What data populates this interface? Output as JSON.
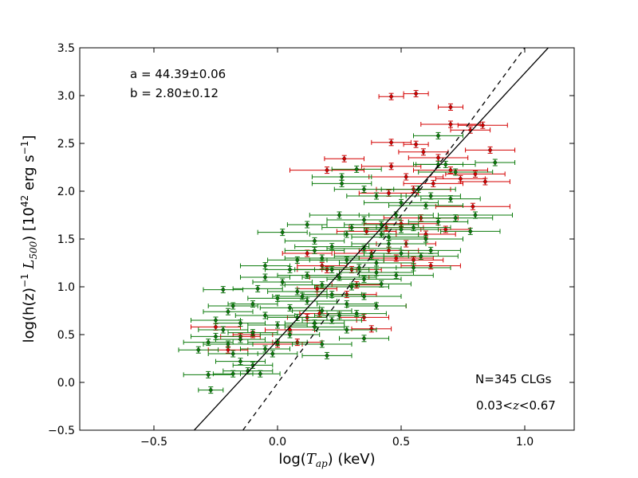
{
  "chart_data": {
    "type": "scatter",
    "title": "",
    "xlabel": "log(T_ap) (keV)",
    "ylabel": "log(h(z)^-1 L_500) [10^42 erg s^-1]",
    "xlim": [
      -0.8,
      1.2
    ],
    "ylim": [
      -0.5,
      3.5
    ],
    "xticks": [
      -0.5,
      0.0,
      0.5,
      1.0
    ],
    "xtick_labels": [
      "−0.5",
      "0.0",
      "0.5",
      "1.0"
    ],
    "yticks": [
      -0.5,
      0.0,
      0.5,
      1.0,
      1.5,
      2.0,
      2.5,
      3.0,
      3.5
    ],
    "ytick_labels": [
      "−0.5",
      "0.0",
      "0.5",
      "1.0",
      "1.5",
      "2.0",
      "2.5",
      "3.0",
      "3.5"
    ],
    "grid": false,
    "annotations": {
      "fit_a": "a = 44.39±0.06",
      "fit_b": "b = 2.80±0.12",
      "n_label": "N=345 CLGs",
      "z_label": "0.03<z<0.67"
    },
    "colors": {
      "red": "#d40000",
      "green": "#0a7a0a",
      "line": "#000000"
    },
    "lines": [
      {
        "style": "solid",
        "x": [
          -0.337,
          1.095
        ],
        "y": [
          -0.5,
          3.5
        ]
      },
      {
        "style": "dashed",
        "x": [
          -0.14,
          1.0
        ],
        "y": [
          -0.5,
          3.5
        ]
      }
    ],
    "series": [
      {
        "color": "red",
        "points": [
          [
            0.46,
            2.99,
            0.05
          ],
          [
            0.56,
            3.02,
            0.05
          ],
          [
            0.7,
            2.88,
            0.05
          ],
          [
            0.78,
            2.64,
            0.08
          ],
          [
            0.83,
            2.69,
            0.1
          ],
          [
            0.7,
            2.7,
            0.12
          ],
          [
            0.86,
            2.43,
            0.1
          ],
          [
            0.46,
            2.51,
            0.08
          ],
          [
            0.56,
            2.49,
            0.05
          ],
          [
            0.27,
            2.34,
            0.08
          ],
          [
            0.2,
            2.22,
            0.15
          ],
          [
            0.46,
            2.26,
            0.12
          ],
          [
            0.59,
            2.41,
            0.1
          ],
          [
            0.65,
            2.35,
            0.12
          ],
          [
            0.7,
            2.22,
            0.15
          ],
          [
            0.8,
            2.18,
            0.12
          ],
          [
            0.74,
            2.13,
            0.1
          ],
          [
            0.84,
            2.1,
            0.1
          ],
          [
            0.52,
            2.15,
            0.15
          ],
          [
            0.63,
            2.08,
            0.12
          ],
          [
            0.55,
            2.02,
            0.15
          ],
          [
            0.45,
            1.98,
            0.12
          ],
          [
            0.79,
            1.84,
            0.15
          ],
          [
            0.58,
            1.72,
            0.15
          ],
          [
            0.5,
            1.66,
            0.15
          ],
          [
            0.44,
            1.62,
            0.15
          ],
          [
            0.52,
            1.45,
            0.12
          ],
          [
            0.45,
            1.38,
            0.12
          ],
          [
            0.38,
            1.35,
            0.15
          ],
          [
            0.48,
            1.3,
            0.15
          ],
          [
            0.55,
            1.28,
            0.12
          ],
          [
            0.12,
            1.35,
            0.1
          ],
          [
            0.18,
            1.22,
            0.1
          ],
          [
            0.2,
            1.18,
            0.12
          ],
          [
            0.25,
            1.1,
            0.12
          ],
          [
            0.32,
            1.02,
            0.1
          ],
          [
            0.16,
            0.98,
            0.08
          ],
          [
            0.28,
            0.92,
            0.12
          ],
          [
            0.4,
            0.8,
            0.12
          ],
          [
            0.35,
            0.68,
            0.1
          ],
          [
            0.17,
            0.72,
            0.08
          ],
          [
            0.12,
            0.68,
            0.08
          ],
          [
            0.05,
            0.55,
            0.1
          ],
          [
            0.0,
            0.4,
            0.1
          ],
          [
            -0.1,
            0.5,
            0.08
          ],
          [
            -0.15,
            0.48,
            0.08
          ],
          [
            -0.2,
            0.34,
            0.08
          ],
          [
            -0.25,
            0.58,
            0.1
          ],
          [
            0.38,
            0.56,
            0.08
          ],
          [
            0.22,
            0.65,
            0.1
          ],
          [
            0.08,
            0.42,
            0.1
          ],
          [
            0.6,
            1.55,
            0.12
          ],
          [
            0.62,
            1.22,
            0.12
          ],
          [
            0.68,
            1.6,
            0.1
          ],
          [
            0.3,
            1.18,
            0.12
          ],
          [
            0.36,
            1.58,
            0.12
          ]
        ]
      },
      {
        "color": "green",
        "points": [
          [
            0.88,
            2.3,
            0.08
          ],
          [
            0.68,
            2.28,
            0.12
          ],
          [
            0.72,
            2.2,
            0.15
          ],
          [
            0.65,
            2.58,
            0.1
          ],
          [
            0.26,
            2.15,
            0.12
          ],
          [
            0.26,
            2.08,
            0.12
          ],
          [
            0.32,
            2.23,
            0.1
          ],
          [
            0.35,
            2.02,
            0.12
          ],
          [
            0.4,
            1.95,
            0.12
          ],
          [
            0.57,
            2.02,
            0.15
          ],
          [
            0.5,
            1.88,
            0.15
          ],
          [
            0.6,
            1.85,
            0.15
          ],
          [
            0.72,
            1.72,
            0.15
          ],
          [
            0.8,
            1.75,
            0.15
          ],
          [
            0.25,
            1.75,
            0.12
          ],
          [
            0.35,
            1.7,
            0.15
          ],
          [
            0.42,
            1.65,
            0.15
          ],
          [
            0.55,
            1.62,
            0.15
          ],
          [
            0.65,
            1.68,
            0.12
          ],
          [
            0.12,
            1.65,
            0.08
          ],
          [
            0.02,
            1.57,
            0.1
          ],
          [
            0.28,
            1.55,
            0.15
          ],
          [
            0.45,
            1.52,
            0.15
          ],
          [
            0.6,
            1.5,
            0.15
          ],
          [
            0.15,
            1.48,
            0.12
          ],
          [
            0.22,
            1.42,
            0.15
          ],
          [
            0.35,
            1.4,
            0.15
          ],
          [
            0.5,
            1.35,
            0.15
          ],
          [
            0.62,
            1.38,
            0.12
          ],
          [
            0.18,
            1.3,
            0.15
          ],
          [
            0.28,
            1.28,
            0.15
          ],
          [
            0.4,
            1.25,
            0.15
          ],
          [
            0.55,
            1.2,
            0.15
          ],
          [
            -0.05,
            1.22,
            0.1
          ],
          [
            0.05,
            1.18,
            0.1
          ],
          [
            0.12,
            1.12,
            0.12
          ],
          [
            0.25,
            1.1,
            0.15
          ],
          [
            0.35,
            1.08,
            0.15
          ],
          [
            0.48,
            1.12,
            0.15
          ],
          [
            -0.05,
            1.1,
            0.1
          ],
          [
            0.02,
            1.05,
            0.12
          ],
          [
            0.18,
            1.02,
            0.15
          ],
          [
            0.3,
            1.0,
            0.15
          ],
          [
            0.42,
            1.03,
            0.12
          ],
          [
            -0.22,
            0.97,
            0.08
          ],
          [
            -0.08,
            0.98,
            0.1
          ],
          [
            0.08,
            0.95,
            0.12
          ],
          [
            0.22,
            0.92,
            0.12
          ],
          [
            0.35,
            0.9,
            0.15
          ],
          [
            0.0,
            0.88,
            0.12
          ],
          [
            0.12,
            0.85,
            0.12
          ],
          [
            0.28,
            0.82,
            0.12
          ],
          [
            0.4,
            0.8,
            0.12
          ],
          [
            -0.18,
            0.8,
            0.1
          ],
          [
            -0.1,
            0.82,
            0.1
          ],
          [
            0.05,
            0.78,
            0.12
          ],
          [
            0.18,
            0.75,
            0.12
          ],
          [
            0.32,
            0.72,
            0.12
          ],
          [
            -0.2,
            0.74,
            0.1
          ],
          [
            -0.05,
            0.7,
            0.12
          ],
          [
            0.08,
            0.68,
            0.12
          ],
          [
            0.22,
            0.65,
            0.12
          ],
          [
            -0.25,
            0.65,
            0.1
          ],
          [
            -0.15,
            0.62,
            0.1
          ],
          [
            0.0,
            0.6,
            0.12
          ],
          [
            0.15,
            0.58,
            0.12
          ],
          [
            0.28,
            0.55,
            0.12
          ],
          [
            -0.22,
            0.55,
            0.1
          ],
          [
            -0.1,
            0.52,
            0.1
          ],
          [
            0.05,
            0.5,
            0.12
          ],
          [
            -0.25,
            0.48,
            0.1
          ],
          [
            -0.15,
            0.45,
            0.1
          ],
          [
            0.0,
            0.42,
            0.12
          ],
          [
            0.18,
            0.4,
            0.12
          ],
          [
            0.35,
            0.46,
            0.1
          ],
          [
            -0.28,
            0.42,
            0.1
          ],
          [
            -0.2,
            0.4,
            0.1
          ],
          [
            -0.05,
            0.35,
            0.1
          ],
          [
            -0.32,
            0.34,
            0.08
          ],
          [
            -0.18,
            0.3,
            0.1
          ],
          [
            -0.02,
            0.3,
            0.1
          ],
          [
            0.2,
            0.28,
            0.1
          ],
          [
            -0.15,
            0.22,
            0.1
          ],
          [
            -0.1,
            0.18,
            0.08
          ],
          [
            -0.12,
            0.12,
            0.1
          ],
          [
            -0.18,
            0.09,
            0.08
          ],
          [
            -0.28,
            0.08,
            0.1
          ],
          [
            -0.07,
            0.09,
            0.08
          ],
          [
            -0.27,
            -0.08,
            0.05
          ],
          [
            0.5,
            1.6,
            0.15
          ],
          [
            0.45,
            1.45,
            0.15
          ],
          [
            0.58,
            1.32,
            0.15
          ],
          [
            0.38,
            1.32,
            0.15
          ],
          [
            0.3,
            1.62,
            0.12
          ],
          [
            0.15,
            1.38,
            0.12
          ],
          [
            0.22,
            1.18,
            0.15
          ],
          [
            0.1,
            0.9,
            0.12
          ],
          [
            0.25,
            0.7,
            0.1
          ],
          [
            0.42,
            1.55,
            0.15
          ],
          [
            0.7,
            1.92,
            0.12
          ],
          [
            0.62,
            1.95,
            0.12
          ],
          [
            0.48,
            1.75,
            0.15
          ],
          [
            0.33,
            1.2,
            0.15
          ],
          [
            0.4,
            1.15,
            0.15
          ],
          [
            0.15,
            0.62,
            0.12
          ],
          [
            0.08,
            1.28,
            0.12
          ],
          [
            0.65,
            2.28,
            0.1
          ],
          [
            0.78,
            1.58,
            0.12
          ]
        ]
      }
    ]
  }
}
